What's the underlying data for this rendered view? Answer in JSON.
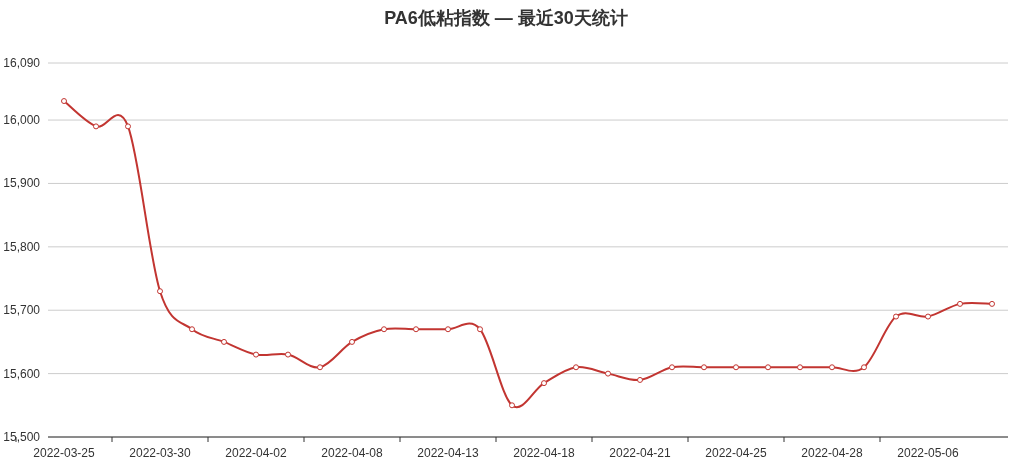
{
  "chart_data": {
    "type": "line",
    "title": "PA6低粘指数 — 最近30天统计",
    "categories": [
      "2022-03-25",
      null,
      null,
      "2022-03-30",
      null,
      null,
      "2022-04-02",
      null,
      null,
      "2022-04-08",
      null,
      null,
      "2022-04-13",
      null,
      null,
      "2022-04-18",
      null,
      null,
      "2022-04-21",
      null,
      null,
      "2022-04-25",
      null,
      null,
      "2022-04-28",
      null,
      null,
      "2022-05-06",
      null,
      null
    ],
    "series": [
      {
        "color": "#c23531",
        "values": [
          16030,
          15990,
          15990,
          15730,
          15670,
          15650,
          15630,
          15630,
          15610,
          15650,
          15670,
          15670,
          15670,
          15670,
          15550,
          15585,
          15610,
          15600,
          15590,
          15610,
          15610,
          15610,
          15610,
          15610,
          15610,
          15610,
          15690,
          15690,
          15710,
          15710
        ]
      }
    ],
    "ylim": [
      15500,
      16090
    ],
    "yticks": [
      {
        "value": 15500,
        "label": "15,500"
      },
      {
        "value": 15600,
        "label": "15,600"
      },
      {
        "value": 15700,
        "label": "15,700"
      },
      {
        "value": 15800,
        "label": "15,800"
      },
      {
        "value": 15900,
        "label": "15,900"
      },
      {
        "value": 16000,
        "label": "16,000"
      },
      {
        "value": 16090,
        "label": "16,090"
      }
    ],
    "grid": "y",
    "marker": "circle"
  }
}
